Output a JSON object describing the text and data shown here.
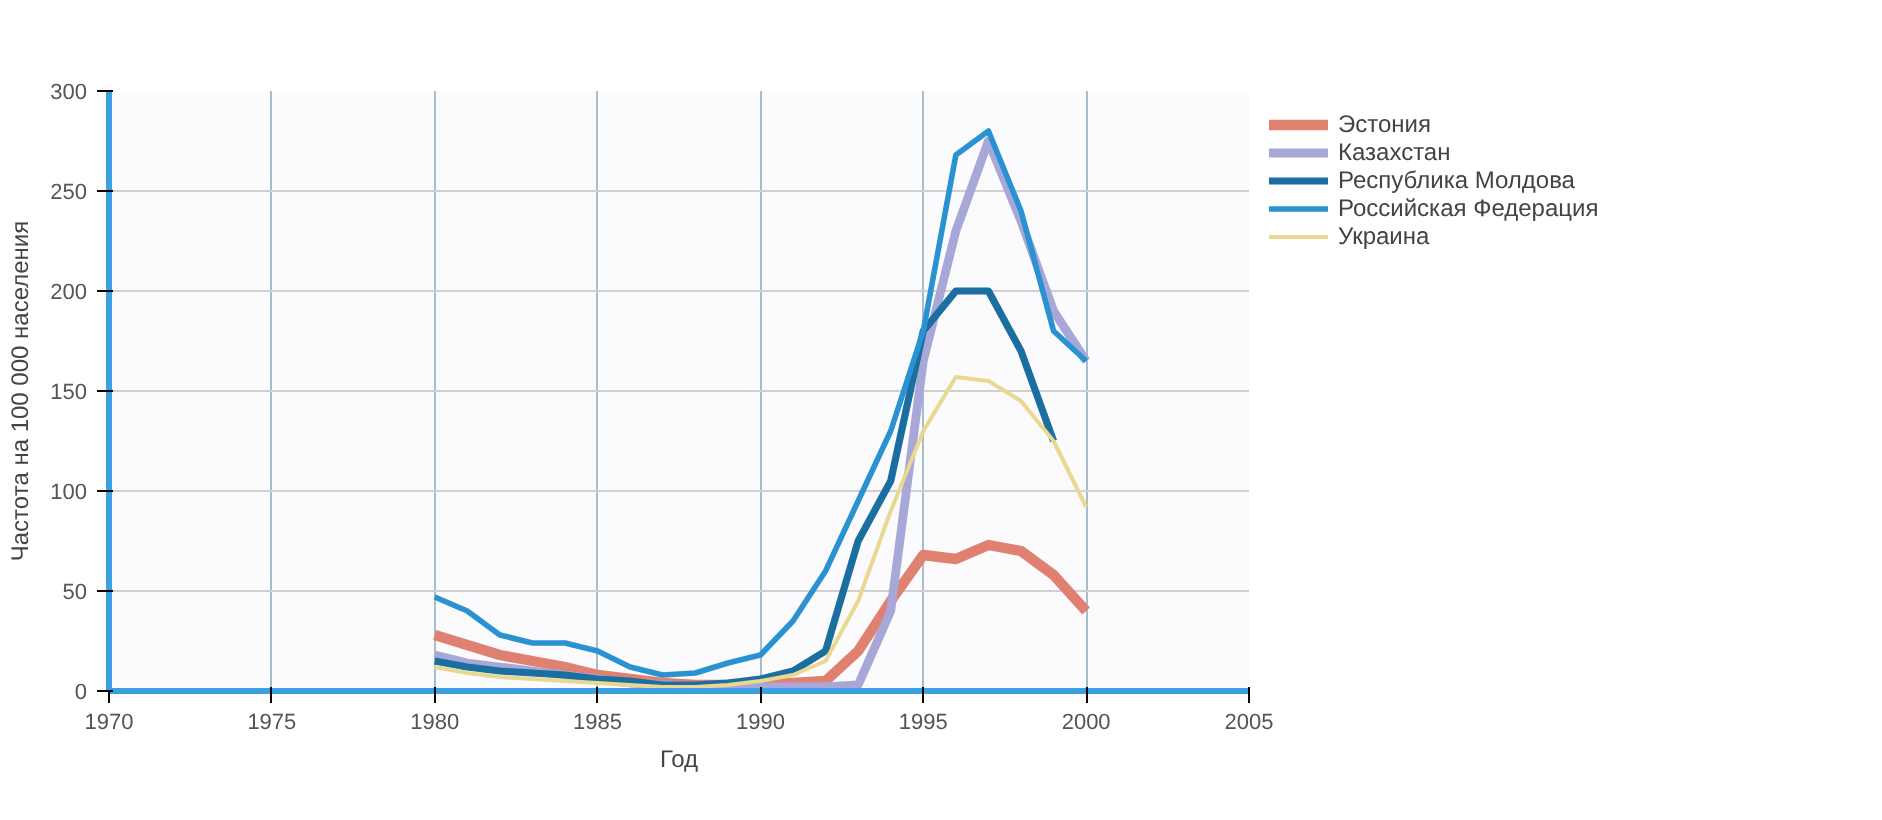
{
  "chart_data": {
    "type": "line",
    "xlabel": "Год",
    "ylabel": "Частота на 100 000 населения",
    "xlim": [
      1970,
      2005
    ],
    "xticks": [
      1970,
      1975,
      1980,
      1985,
      1990,
      1995,
      2000,
      2005
    ],
    "ylim": [
      0,
      300
    ],
    "yticks": [
      0,
      50,
      100,
      150,
      200,
      250,
      300
    ],
    "grid": true,
    "legend": "right",
    "marker": "none",
    "line_style": "solid",
    "x": [
      1980,
      1981,
      1982,
      1983,
      1984,
      1985,
      1986,
      1987,
      1988,
      1989,
      1990,
      1991,
      1992,
      1993,
      1994,
      1995,
      1996,
      1997,
      1998,
      1999,
      2000
    ],
    "series": [
      {
        "name": "Эстония",
        "color": "#e08070",
        "values": [
          28,
          23,
          18,
          15,
          12,
          8,
          6,
          4,
          3,
          3,
          3,
          4,
          5,
          20,
          45,
          68,
          66,
          73,
          70,
          58,
          40
        ]
      },
      {
        "name": "Казахстан",
        "color": "#a8a8d8",
        "values": [
          18,
          14,
          12,
          10,
          8,
          6,
          4,
          3,
          2,
          2,
          2,
          2,
          2,
          3,
          40,
          165,
          230,
          275,
          235,
          190,
          165
        ]
      },
      {
        "name": "Республика Молдова",
        "color": "#1a6ea0",
        "values": [
          15,
          12,
          10,
          9,
          8,
          6,
          5,
          3,
          3,
          4,
          6,
          10,
          20,
          75,
          105,
          180,
          200,
          200,
          170,
          125,
          null
        ]
      },
      {
        "name": "Российская Федерация",
        "color": "#2a92d0",
        "values": [
          47,
          40,
          28,
          24,
          24,
          20,
          12,
          8,
          9,
          14,
          18,
          35,
          60,
          95,
          130,
          180,
          268,
          280,
          240,
          180,
          165
        ]
      },
      {
        "name": "Украина",
        "color": "#e8d890",
        "values": [
          12,
          9,
          7,
          6,
          5,
          4,
          3,
          2,
          2,
          3,
          5,
          8,
          15,
          45,
          90,
          130,
          157,
          155,
          145,
          125,
          92
        ]
      }
    ]
  }
}
